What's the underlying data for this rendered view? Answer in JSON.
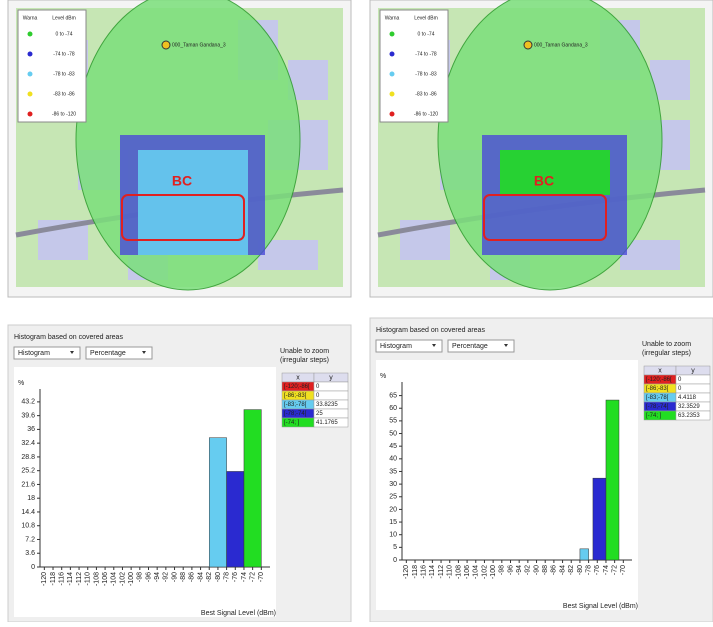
{
  "maps": [
    {
      "legend": {
        "headers": [
          "Warna",
          "Level dBm"
        ],
        "rows": [
          {
            "label": "0 to -74",
            "color": "#2ecc2e"
          },
          {
            "label": "-74 to -78",
            "color": "#2a2ad0"
          },
          {
            "label": "-78 to -83",
            "color": "#66ccf0"
          },
          {
            "label": "-83 to -86",
            "color": "#f0e020"
          },
          {
            "label": "-86 to -120",
            "color": "#e02020"
          }
        ]
      },
      "site": "000_Taman Gandana_3",
      "annotation": "BC"
    },
    {
      "legend": {
        "headers": [
          "Warna",
          "Level dBm"
        ],
        "rows": [
          {
            "label": "0 to -74",
            "color": "#2ecc2e"
          },
          {
            "label": "-74 to -78",
            "color": "#2a2ad0"
          },
          {
            "label": "-78 to -83",
            "color": "#66ccf0"
          },
          {
            "label": "-83 to -86",
            "color": "#f0e020"
          },
          {
            "label": "-86 to -120",
            "color": "#e02020"
          }
        ]
      },
      "site": "000_Taman Gandana_3",
      "annotation": "BC"
    }
  ],
  "chart_data": [
    {
      "type": "histogram",
      "title": "Histogram based on covered areas",
      "controls": [
        "Histogram",
        "Percentage"
      ],
      "note": "Unable to zoom (irregular steps)",
      "y_label": "%",
      "x_label": "Best Signal Level (dBm)",
      "bins": [
        -82,
        -78,
        -74,
        -70
      ],
      "values": [
        33.8235,
        25,
        41.1765
      ],
      "colors": [
        "#66ccf0",
        "#2a2ad0",
        "#22dd22"
      ],
      "ylim": [
        0,
        45
      ],
      "yticks": [
        0,
        3.6,
        7.2,
        10.8,
        14.4,
        18,
        21.6,
        25.2,
        28.8,
        32.4,
        36,
        39.6,
        43.2
      ],
      "xlim": [
        -121,
        -68
      ],
      "xticks": [
        -120,
        -118,
        -116,
        -114,
        -112,
        -110,
        -108,
        -106,
        -104,
        -102,
        -100,
        -98,
        -96,
        -94,
        -92,
        -90,
        -88,
        -86,
        -84,
        -82,
        -80,
        -78,
        -76,
        -74,
        -72,
        -70
      ],
      "table": {
        "columns": [
          "x",
          "y"
        ],
        "rows": [
          [
            "[-120;-86[",
            0
          ],
          [
            "[-86;-83[",
            0
          ],
          [
            "[-83;-78[",
            33.8235
          ],
          [
            "[-78;-74[",
            25
          ],
          [
            "[-74; ]",
            41.1765
          ]
        ],
        "colors": [
          "#e02020",
          "#f0e020",
          "#66ccf0",
          "#2a2ad0",
          "#22dd22"
        ]
      }
    },
    {
      "type": "histogram",
      "title": "Histogram based on covered areas",
      "controls": [
        "Histogram",
        "Percentage"
      ],
      "note": "Unable to zoom (irregular steps)",
      "y_label": "%",
      "x_label": "Best Signal Level (dBm)",
      "bins": [
        -80,
        -78,
        -77,
        -74,
        -71
      ],
      "values": [
        4.4118,
        null,
        32.3529,
        63.2353
      ],
      "colors": [
        "#66ccf0",
        "#66ccf0",
        "#2a2ad0",
        "#22dd22"
      ],
      "ylim": [
        0,
        68
      ],
      "yticks": [
        0,
        5,
        10,
        15,
        20,
        25,
        30,
        35,
        40,
        45,
        50,
        55,
        60,
        65
      ],
      "xlim": [
        -121,
        -68
      ],
      "xticks": [
        -120,
        -118,
        -116,
        -114,
        -112,
        -110,
        -108,
        -106,
        -104,
        -102,
        -100,
        -98,
        -96,
        -94,
        -92,
        -90,
        -88,
        -86,
        -84,
        -82,
        -80,
        -78,
        -76,
        -74,
        -72,
        -70
      ],
      "table": {
        "columns": [
          "x",
          "y"
        ],
        "rows": [
          [
            "[-120;-86[",
            0
          ],
          [
            "[-86;-83[",
            0
          ],
          [
            "[-83;-78[",
            4.4118
          ],
          [
            "[-78;-74[",
            32.3529
          ],
          [
            "[-74; ]",
            63.2353
          ]
        ],
        "colors": [
          "#e02020",
          "#f0e020",
          "#66ccf0",
          "#2a2ad0",
          "#22dd22"
        ]
      }
    }
  ]
}
